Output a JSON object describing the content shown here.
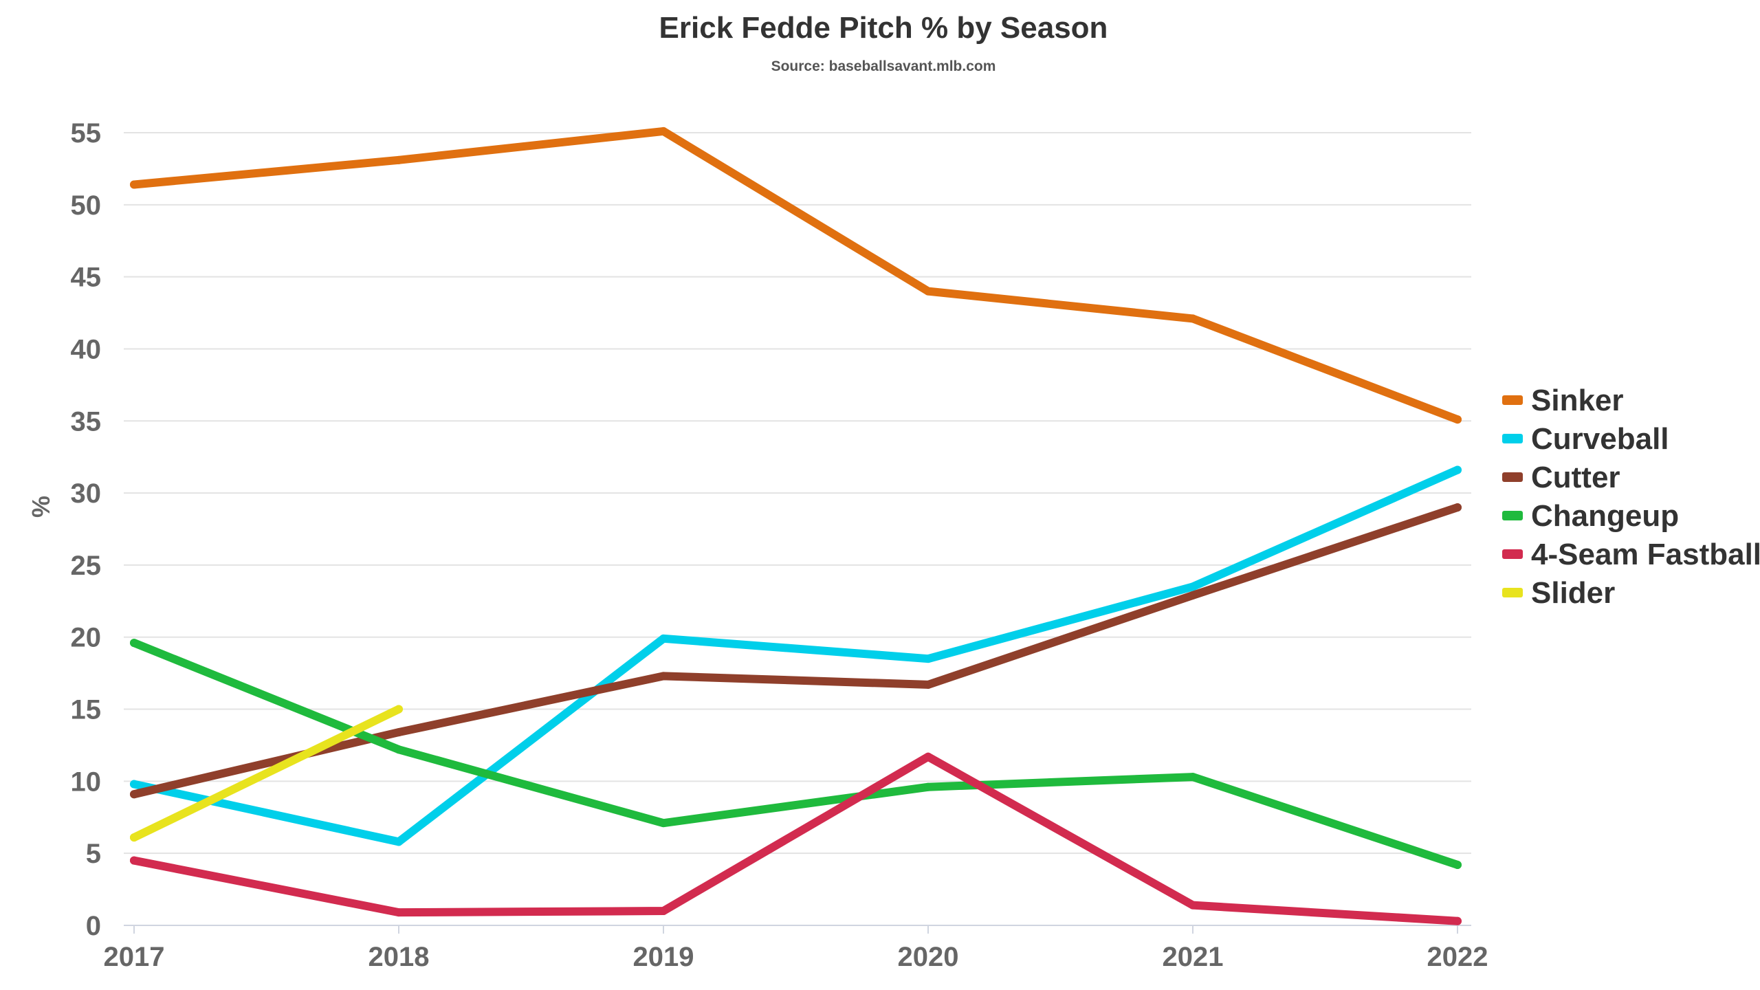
{
  "chart_data": {
    "type": "line",
    "title": "Erick Fedde Pitch % by Season",
    "subtitle": "Source: baseballsavant.mlb.com",
    "xlabel": "",
    "ylabel": "%",
    "x": [
      "2017",
      "2018",
      "2019",
      "2020",
      "2021",
      "2022"
    ],
    "ylim": [
      0,
      55
    ],
    "yticks": [
      0,
      5,
      10,
      15,
      20,
      25,
      30,
      35,
      40,
      45,
      50,
      55
    ],
    "grid": true,
    "legend_position": "right",
    "series": [
      {
        "name": "Sinker",
        "color": "#e07010",
        "values": [
          51.4,
          53.1,
          55.1,
          44.0,
          42.1,
          35.1
        ]
      },
      {
        "name": "Curveball",
        "color": "#00cfea",
        "values": [
          9.8,
          5.8,
          19.9,
          18.5,
          23.5,
          31.6
        ]
      },
      {
        "name": "Cutter",
        "color": "#8f3f2b",
        "values": [
          9.1,
          13.4,
          17.3,
          16.7,
          22.9,
          29.0
        ]
      },
      {
        "name": "Changeup",
        "color": "#1fba3d",
        "values": [
          19.6,
          12.2,
          7.1,
          9.6,
          10.3,
          4.2
        ]
      },
      {
        "name": "4-Seam Fastball",
        "color": "#d22b4f",
        "values": [
          4.5,
          0.9,
          1.0,
          11.7,
          1.4,
          0.3
        ]
      },
      {
        "name": "Slider",
        "color": "#e8e31e",
        "values": [
          6.1,
          15.0,
          null,
          null,
          null,
          null
        ]
      }
    ]
  }
}
